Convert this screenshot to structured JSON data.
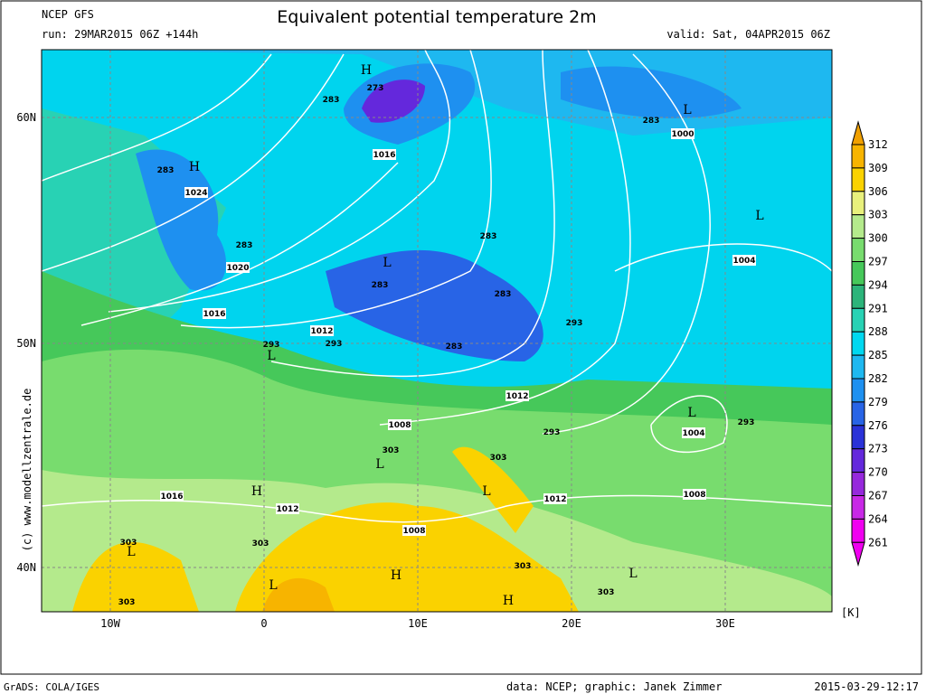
{
  "header": {
    "model": "NCEP GFS",
    "run": "run: 29MAR2015 06Z +144h",
    "title": "Equivalent potential temperature 2m",
    "valid": "valid: Sat, 04APR2015 06Z"
  },
  "axes": {
    "lon": [
      "10W",
      "0",
      "10E",
      "20E",
      "30E"
    ],
    "lat": [
      "60N",
      "50N",
      "40N"
    ]
  },
  "colorbar": {
    "levels": [
      "312",
      "309",
      "306",
      "303",
      "300",
      "297",
      "294",
      "291",
      "288",
      "285",
      "282",
      "279",
      "276",
      "273",
      "270",
      "267",
      "264",
      "261"
    ],
    "colors": [
      "#f0a000",
      "#f7b400",
      "#fad200",
      "#e8f07c",
      "#b4ea8c",
      "#78dc6e",
      "#46c85a",
      "#2cb47a",
      "#28d2b4",
      "#00d8f0",
      "#1eb8f0",
      "#1e90f0",
      "#2864e6",
      "#2a32d8",
      "#6428dc",
      "#9628dc",
      "#c828e6",
      "#f000f0"
    ],
    "unit": "[K]"
  },
  "credit": "(c) www.modellzentrale.de",
  "map_labels": [
    "H",
    "273",
    "283",
    "1016",
    "H",
    "283",
    "1024",
    "283",
    "1020",
    "L",
    "283",
    "1016",
    "1012",
    "283",
    "283",
    "293",
    "283",
    "293",
    "L",
    "293",
    "1012",
    "L",
    "1004",
    "293",
    "1008",
    "293",
    "303",
    "L",
    "303",
    "L",
    "1012",
    "1008",
    "1016",
    "H",
    "1012",
    "1008",
    "L",
    "303",
    "303",
    "H",
    "L",
    "303",
    "L",
    "303",
    "H",
    "303",
    "L",
    "283",
    "1000",
    "L",
    "1004"
  ],
  "footer": {
    "software": "GrADS: COLA/IGES",
    "source": "data: NCEP; graphic: Janek Zimmer",
    "timestamp": "2015-03-29-12:17"
  }
}
